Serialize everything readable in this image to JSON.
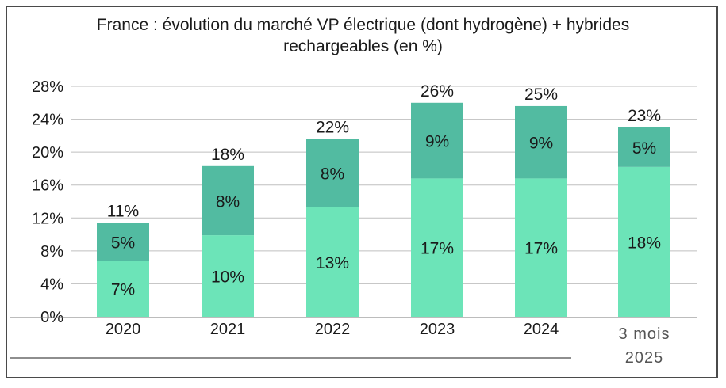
{
  "chart_data": {
    "type": "bar",
    "stacked": true,
    "title": "France : évolution du marché VP électrique (dont hydrogène) + hybrides rechargeables (en %)",
    "title_lines": [
      "France : évolution du marché VP électrique (dont hydrogène) + hybrides",
      "rechargeables (en %)"
    ],
    "categories": [
      "2020",
      "2021",
      "2022",
      "2023",
      "2024",
      "3 mois 2025"
    ],
    "category_lines": [
      [
        "2020"
      ],
      [
        "2021"
      ],
      [
        "2022"
      ],
      [
        "2023"
      ],
      [
        "2024"
      ],
      [
        "3 mois",
        "2025"
      ]
    ],
    "series": [
      {
        "values": [
          6.8,
          9.9,
          13.3,
          16.8,
          16.8,
          18.2
        ],
        "labels": [
          "7%",
          "10%",
          "13%",
          "17%",
          "17%",
          "18%"
        ],
        "color": "#6ce4b8"
      },
      {
        "values": [
          4.6,
          8.4,
          8.3,
          9.2,
          8.8,
          4.8
        ],
        "labels": [
          "5%",
          "8%",
          "8%",
          "9%",
          "9%",
          "5%"
        ],
        "color": "#52bba1"
      }
    ],
    "totals": [
      "11%",
      "18%",
      "22%",
      "26%",
      "25%",
      "23%"
    ],
    "yticks": [
      "0%",
      "4%",
      "8%",
      "12%",
      "16%",
      "20%",
      "24%",
      "28%"
    ],
    "ylim": [
      0,
      28
    ],
    "ytick_step": 4,
    "grid": true
  }
}
